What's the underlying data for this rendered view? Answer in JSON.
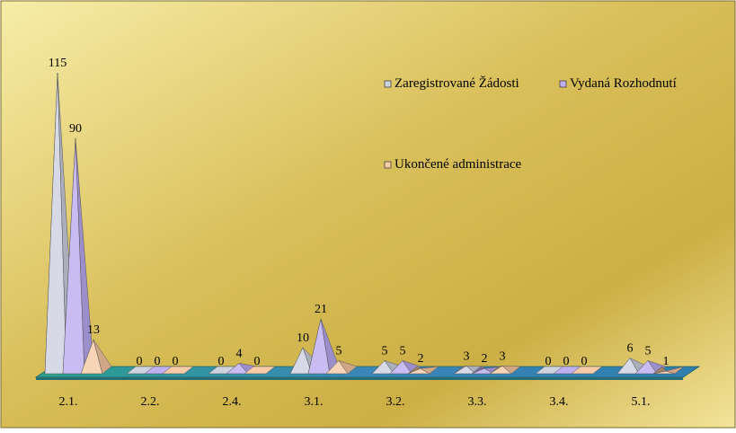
{
  "chart_data": {
    "type": "bar",
    "title": "",
    "xlabel": "",
    "ylabel": "",
    "categories": [
      "2.1.",
      "2.2.",
      "2.4.",
      "3.1.",
      "3.2.",
      "3.3.",
      "3.4.",
      "5.1."
    ],
    "series": [
      {
        "name": "Zaregistrované Žádosti",
        "values": [
          115,
          0,
          0,
          10,
          5,
          3,
          0,
          6
        ]
      },
      {
        "name": "Vydaná Rozhodnutí",
        "values": [
          90,
          0,
          4,
          21,
          5,
          2,
          0,
          5
        ]
      },
      {
        "name": "Ukončené administrace",
        "values": [
          13,
          0,
          0,
          5,
          2,
          3,
          0,
          1
        ]
      }
    ],
    "ylim": [
      0,
      115
    ],
    "grid": false,
    "legend_position": "top-right",
    "mark_shape": "3d-pyramid",
    "colors": {
      "background_light": "#f5eaa0",
      "background_dark": "#c9a93d",
      "floor": "#2e8fa3",
      "series": [
        "#c9cedd",
        "#b7a6ef",
        "#f5c59e"
      ]
    }
  }
}
